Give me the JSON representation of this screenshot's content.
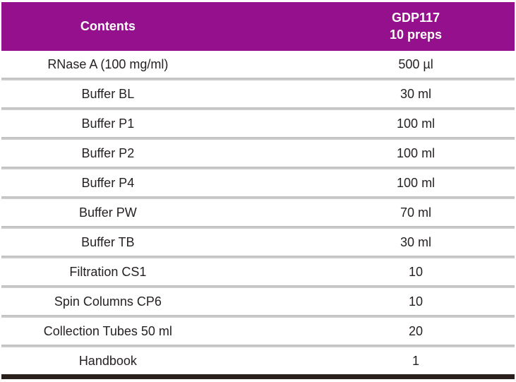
{
  "table": {
    "header": {
      "contents_label": "Contents",
      "kit_code": "GDP117",
      "kit_size": "10 preps"
    },
    "rows": [
      {
        "label": "RNase A (100 mg/ml)",
        "value": "500 µl"
      },
      {
        "label": "Buffer BL",
        "value": "30 ml"
      },
      {
        "label": "Buffer P1",
        "value": "100 ml"
      },
      {
        "label": "Buffer P2",
        "value": "100 ml"
      },
      {
        "label": "Buffer P4",
        "value": "100 ml"
      },
      {
        "label": "Buffer PW",
        "value": "70 ml"
      },
      {
        "label": "Buffer TB",
        "value": "30 ml"
      },
      {
        "label": "Filtration CS1",
        "value": "10"
      },
      {
        "label": "Spin Columns CP6",
        "value": "10"
      },
      {
        "label": "Collection Tubes 50 ml",
        "value": "20"
      },
      {
        "label": "Handbook",
        "value": "1"
      }
    ],
    "colors": {
      "header_bg": "#94108C",
      "header_text": "#FFFFFF",
      "body_text": "#262123",
      "separator": "#C7C7C7",
      "bottom_bar": "#29201B"
    }
  }
}
